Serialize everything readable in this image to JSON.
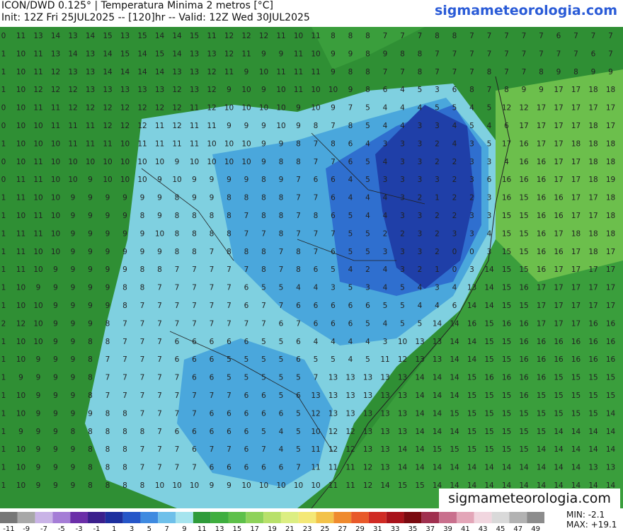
{
  "header": {
    "title": "ICON/DWD 0.125° | Temperatura Minima 2 metros [°C]",
    "subtitle": "Init: 12Z Fri 25JUL2025 -- [120]hr -- Valid: 12Z Wed 30JUL2025",
    "site": "sigmameteorologia.com"
  },
  "watermark": "sigmameteorologia.com",
  "stats": {
    "min": "MIN: -2.1",
    "max": "MAX: +19.1"
  },
  "colorbar": {
    "labels": [
      "-11",
      "-9",
      "-7",
      "-5",
      "-3",
      "-1",
      "1",
      "3",
      "5",
      "7",
      "9",
      "11",
      "13",
      "15",
      "17",
      "19",
      "21",
      "23",
      "25",
      "27",
      "29",
      "31",
      "33",
      "35",
      "37",
      "39",
      "41",
      "43",
      "45",
      "47",
      "49"
    ],
    "colors": [
      "#777777",
      "#a8a8a8",
      "#c9b3e6",
      "#a57dd6",
      "#6b2fa8",
      "#3b1f8c",
      "#1d2f9e",
      "#2656c8",
      "#3f8ae0",
      "#6fc0ea",
      "#a6e4ee",
      "#2f9b3a",
      "#3fae3f",
      "#5ec04a",
      "#8ed25a",
      "#b8e06a",
      "#dcee82",
      "#f4e877",
      "#f3c24a",
      "#ef8a2e",
      "#e8592a",
      "#d02b24",
      "#a8121a",
      "#7a0a10",
      "#a0304f",
      "#c9708d",
      "#e3a6b8",
      "#f1d6df",
      "#d9d9d9",
      "#b2b2b2",
      "#8c8c8c"
    ]
  },
  "grid": [
    [
      0,
      11,
      13,
      14,
      13,
      14,
      15,
      13,
      15,
      14,
      14,
      15,
      11,
      12,
      12,
      12,
      11,
      10,
      11,
      8,
      8,
      8,
      7,
      7,
      7,
      8,
      8,
      7,
      7,
      7,
      7,
      7,
      6,
      7,
      7,
      7
    ],
    [
      1,
      10,
      11,
      13,
      14,
      13,
      14,
      15,
      14,
      15,
      14,
      13,
      13,
      12,
      11,
      9,
      9,
      11,
      10,
      9,
      9,
      8,
      9,
      8,
      8,
      7,
      7,
      7,
      7,
      7,
      7,
      7,
      7,
      7,
      6,
      7
    ],
    [
      1,
      10,
      11,
      12,
      13,
      13,
      14,
      14,
      14,
      14,
      13,
      13,
      12,
      11,
      9,
      10,
      11,
      11,
      11,
      9,
      8,
      8,
      7,
      7,
      8,
      7,
      7,
      7,
      8,
      7,
      7,
      8,
      9,
      8,
      9,
      9
    ],
    [
      1,
      10,
      12,
      12,
      12,
      13,
      13,
      13,
      13,
      13,
      12,
      13,
      12,
      9,
      10,
      9,
      10,
      11,
      10,
      10,
      9,
      8,
      6,
      4,
      5,
      3,
      6,
      8,
      7,
      8,
      9,
      9,
      17,
      17,
      18,
      18
    ],
    [
      0,
      10,
      11,
      11,
      12,
      12,
      12,
      12,
      12,
      12,
      12,
      11,
      12,
      10,
      10,
      10,
      10,
      9,
      10,
      9,
      7,
      5,
      4,
      4,
      4,
      5,
      5,
      4,
      5,
      12,
      12,
      17,
      17,
      17,
      17,
      17
    ],
    [
      0,
      10,
      10,
      11,
      11,
      11,
      12,
      12,
      12,
      11,
      12,
      11,
      11,
      9,
      9,
      9,
      10,
      9,
      8,
      7,
      8,
      5,
      4,
      4,
      3,
      3,
      4,
      5,
      4,
      6,
      17,
      17,
      17,
      17,
      18,
      17
    ],
    [
      1,
      10,
      10,
      10,
      11,
      11,
      11,
      10,
      11,
      11,
      11,
      11,
      10,
      10,
      10,
      9,
      9,
      8,
      7,
      8,
      6,
      4,
      3,
      3,
      3,
      2,
      4,
      3,
      5,
      17,
      16,
      17,
      17,
      18,
      18,
      18
    ],
    [
      0,
      10,
      11,
      10,
      10,
      10,
      10,
      10,
      10,
      10,
      9,
      10,
      10,
      10,
      10,
      9,
      8,
      8,
      7,
      7,
      6,
      5,
      4,
      3,
      3,
      2,
      2,
      3,
      3,
      4,
      16,
      16,
      17,
      17,
      18,
      18
    ],
    [
      0,
      11,
      11,
      10,
      10,
      9,
      10,
      10,
      10,
      9,
      10,
      9,
      9,
      9,
      9,
      8,
      9,
      7,
      6,
      6,
      4,
      5,
      3,
      3,
      3,
      3,
      2,
      3,
      6,
      16,
      16,
      16,
      17,
      17,
      18,
      19
    ],
    [
      1,
      11,
      10,
      10,
      9,
      9,
      9,
      9,
      9,
      9,
      8,
      9,
      9,
      8,
      8,
      8,
      8,
      7,
      7,
      6,
      4,
      4,
      4,
      3,
      2,
      1,
      2,
      2,
      3,
      16,
      15,
      16,
      16,
      17,
      17,
      18
    ],
    [
      1,
      10,
      11,
      10,
      9,
      9,
      9,
      9,
      8,
      9,
      8,
      8,
      8,
      8,
      7,
      8,
      8,
      7,
      8,
      6,
      5,
      4,
      4,
      3,
      3,
      2,
      2,
      3,
      3,
      15,
      15,
      16,
      16,
      17,
      17,
      18
    ],
    [
      1,
      11,
      11,
      10,
      9,
      9,
      9,
      9,
      9,
      10,
      8,
      8,
      8,
      8,
      7,
      7,
      8,
      7,
      7,
      7,
      5,
      5,
      2,
      2,
      3,
      2,
      3,
      3,
      4,
      15,
      15,
      16,
      17,
      18,
      18,
      18
    ],
    [
      1,
      11,
      10,
      10,
      9,
      9,
      9,
      9,
      9,
      9,
      8,
      8,
      7,
      8,
      8,
      8,
      7,
      8,
      7,
      6,
      5,
      5,
      3,
      3,
      3,
      2,
      0,
      0,
      3,
      15,
      15,
      16,
      16,
      17,
      18,
      17
    ],
    [
      1,
      11,
      10,
      9,
      9,
      9,
      9,
      9,
      8,
      8,
      7,
      7,
      7,
      7,
      7,
      8,
      7,
      8,
      6,
      5,
      4,
      2,
      4,
      3,
      2,
      1,
      0,
      3,
      14,
      15,
      15,
      16,
      17,
      17,
      17,
      17
    ],
    [
      1,
      10,
      9,
      9,
      9,
      9,
      9,
      8,
      8,
      7,
      7,
      7,
      7,
      7,
      6,
      5,
      5,
      4,
      4,
      3,
      5,
      3,
      4,
      5,
      4,
      3,
      4,
      13,
      14,
      15,
      16,
      17,
      17,
      17,
      17,
      17
    ],
    [
      1,
      10,
      10,
      9,
      9,
      9,
      9,
      8,
      7,
      7,
      7,
      7,
      7,
      7,
      6,
      7,
      7,
      6,
      6,
      6,
      6,
      6,
      5,
      5,
      4,
      4,
      6,
      14,
      14,
      15,
      15,
      17,
      17,
      17,
      17,
      17
    ],
    [
      2,
      12,
      10,
      9,
      9,
      9,
      8,
      7,
      7,
      7,
      7,
      7,
      7,
      7,
      7,
      7,
      6,
      7,
      6,
      6,
      6,
      5,
      4,
      5,
      5,
      14,
      14,
      16,
      15,
      16,
      16,
      17,
      17,
      17,
      16,
      16
    ],
    [
      1,
      10,
      10,
      9,
      9,
      8,
      8,
      7,
      7,
      7,
      6,
      6,
      6,
      6,
      6,
      5,
      5,
      6,
      4,
      4,
      4,
      4,
      3,
      10,
      13,
      13,
      14,
      14,
      15,
      15,
      16,
      16,
      16,
      16,
      16,
      16
    ],
    [
      1,
      10,
      9,
      9,
      9,
      8,
      7,
      7,
      7,
      7,
      6,
      6,
      6,
      5,
      5,
      5,
      5,
      6,
      5,
      5,
      4,
      5,
      11,
      12,
      13,
      13,
      14,
      14,
      15,
      15,
      16,
      16,
      16,
      16,
      16,
      16
    ],
    [
      1,
      9,
      9,
      9,
      9,
      8,
      7,
      7,
      7,
      7,
      7,
      6,
      6,
      5,
      5,
      5,
      5,
      5,
      7,
      13,
      13,
      13,
      13,
      13,
      14,
      14,
      14,
      15,
      16,
      16,
      16,
      16,
      15,
      15,
      15,
      15
    ],
    [
      1,
      10,
      9,
      9,
      9,
      8,
      7,
      7,
      7,
      7,
      7,
      7,
      7,
      7,
      6,
      6,
      5,
      6,
      13,
      13,
      13,
      13,
      13,
      13,
      14,
      14,
      14,
      15,
      15,
      15,
      16,
      15,
      15,
      15,
      15,
      15
    ],
    [
      1,
      10,
      9,
      9,
      9,
      9,
      8,
      8,
      7,
      7,
      7,
      7,
      6,
      6,
      6,
      6,
      6,
      5,
      12,
      13,
      13,
      13,
      13,
      13,
      14,
      14,
      15,
      15,
      15,
      15,
      15,
      15,
      15,
      15,
      15,
      14
    ],
    [
      1,
      9,
      9,
      9,
      8,
      8,
      8,
      8,
      8,
      7,
      6,
      6,
      6,
      6,
      6,
      5,
      4,
      5,
      10,
      12,
      12,
      13,
      13,
      13,
      14,
      14,
      14,
      15,
      15,
      15,
      15,
      15,
      14,
      14,
      14,
      14
    ],
    [
      1,
      10,
      9,
      9,
      9,
      8,
      8,
      8,
      7,
      7,
      7,
      6,
      7,
      7,
      6,
      7,
      4,
      5,
      11,
      12,
      12,
      13,
      13,
      14,
      14,
      15,
      15,
      15,
      15,
      15,
      15,
      14,
      14,
      14,
      14,
      14
    ],
    [
      1,
      10,
      9,
      9,
      9,
      8,
      8,
      8,
      7,
      7,
      7,
      7,
      6,
      6,
      6,
      6,
      6,
      7,
      11,
      11,
      11,
      12,
      13,
      14,
      14,
      14,
      14,
      14,
      14,
      14,
      14,
      14,
      14,
      14,
      13,
      13
    ],
    [
      1,
      10,
      9,
      9,
      9,
      8,
      8,
      8,
      8,
      10,
      10,
      10,
      9,
      9,
      10,
      10,
      10,
      10,
      10,
      11,
      11,
      12,
      14,
      15,
      15,
      14,
      14,
      14,
      14,
      14,
      14,
      14,
      14,
      14,
      14,
      14
    ]
  ]
}
